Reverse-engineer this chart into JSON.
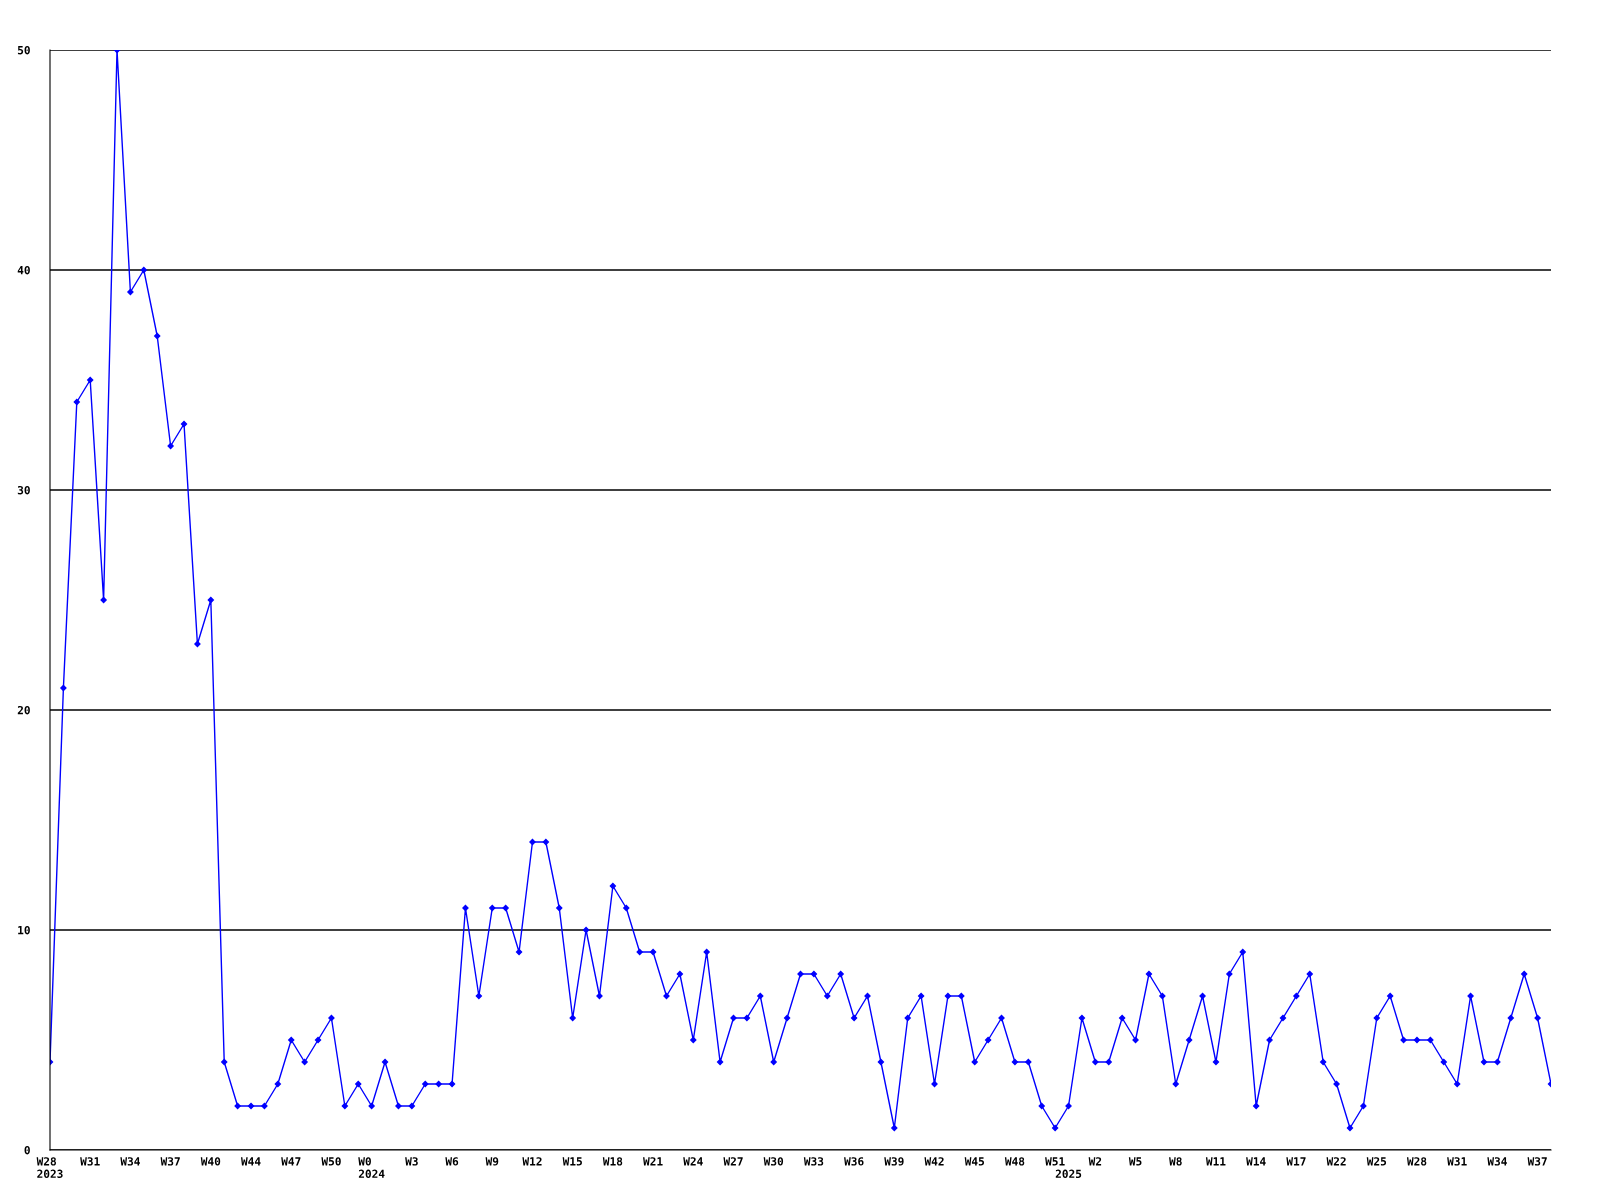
{
  "chart_data": {
    "type": "line",
    "categories": [
      "W28\n2023",
      null,
      null,
      "W31",
      null,
      null,
      "W34",
      null,
      null,
      "W37",
      null,
      null,
      "W40",
      null,
      null,
      "W44",
      null,
      null,
      "W47",
      null,
      null,
      "W50",
      null,
      null,
      "W0\n2024",
      null,
      null,
      "W3",
      null,
      null,
      "W6",
      null,
      null,
      "W9",
      null,
      null,
      "W12",
      null,
      null,
      "W15",
      null,
      null,
      "W18",
      null,
      null,
      "W21",
      null,
      null,
      "W24",
      null,
      null,
      "W27",
      null,
      null,
      "W30",
      null,
      null,
      "W33",
      null,
      null,
      "W36",
      null,
      null,
      "W39",
      null,
      null,
      "W42",
      null,
      null,
      "W45",
      null,
      null,
      "W48",
      null,
      null,
      "W51",
      "\n2025",
      null,
      "W2",
      null,
      null,
      "W5",
      null,
      null,
      "W8",
      null,
      null,
      "W11",
      null,
      null,
      "W14",
      null,
      null,
      "W17",
      null,
      null,
      "W22",
      null,
      null,
      "W25",
      null,
      null,
      "W28",
      null,
      null,
      "W31",
      null,
      null,
      "W34",
      null,
      null,
      "W37",
      null
    ],
    "series": [
      {
        "color": "#0000ff",
        "values": [
          4,
          21,
          34,
          35,
          25,
          50,
          39,
          40,
          37,
          32,
          33,
          23,
          25,
          4,
          2,
          2,
          2,
          3,
          5,
          4,
          5,
          6,
          2,
          3,
          2,
          4,
          2,
          2,
          3,
          3,
          3,
          11,
          7,
          11,
          11,
          9,
          14,
          14,
          11,
          6,
          10,
          7,
          12,
          11,
          9,
          9,
          7,
          8,
          5,
          9,
          4,
          6,
          6,
          7,
          4,
          6,
          8,
          8,
          7,
          8,
          6,
          7,
          4,
          1,
          6,
          7,
          3,
          7,
          7,
          4,
          5,
          6,
          4,
          4,
          2,
          1,
          2,
          6,
          4,
          4,
          6,
          5,
          8,
          7,
          3,
          5,
          7,
          4,
          8,
          9,
          2,
          5,
          6,
          7,
          8,
          4,
          3,
          1,
          2,
          6,
          7,
          5,
          5,
          5,
          4,
          3,
          7,
          4,
          4,
          6,
          8,
          6,
          3
        ]
      }
    ],
    "ylim": [
      0,
      50
    ],
    "yticks": [
      0,
      10,
      20,
      30,
      40,
      50
    ],
    "grid": "y",
    "marker": "diamond",
    "line_style": "solid",
    "legend": false
  }
}
